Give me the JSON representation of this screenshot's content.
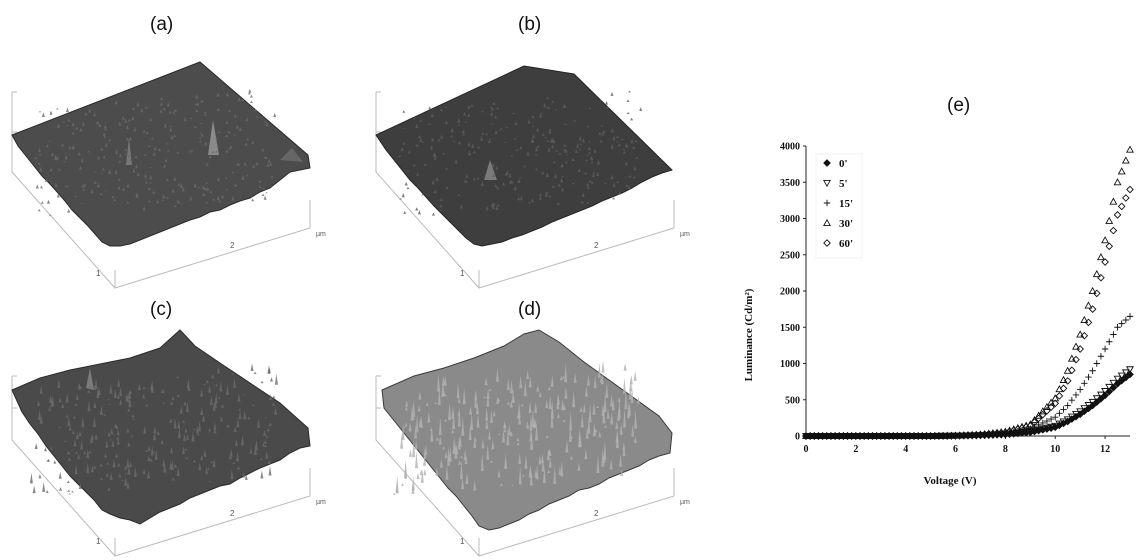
{
  "panels": {
    "a": {
      "label": "(a)",
      "axis_unit": "µm",
      "ticks": [
        "1",
        "2"
      ]
    },
    "b": {
      "label": "(b)",
      "axis_unit": "µm",
      "ticks": [
        "1",
        "2"
      ]
    },
    "c": {
      "label": "(c)",
      "axis_unit": "µm",
      "ticks": [
        "1",
        "2"
      ]
    },
    "d": {
      "label": "(d)",
      "axis_unit": "µm",
      "ticks": [
        "1",
        "2"
      ]
    },
    "e": {
      "label": "(e)"
    }
  },
  "chart_data": {
    "type": "scatter",
    "title": "",
    "xlabel": "Voltage (V)",
    "ylabel": "Luminance (Cd/m²)",
    "xlim": [
      0,
      13
    ],
    "ylim": [
      0,
      4000
    ],
    "xticks": [
      0,
      2,
      4,
      6,
      8,
      10,
      12
    ],
    "yticks": [
      0,
      500,
      1000,
      1500,
      2000,
      2500,
      3000,
      3500,
      4000
    ],
    "grid": false,
    "legend_position": "top-left",
    "series": [
      {
        "name": "0'",
        "marker": "filled-diamond",
        "x": [
          0,
          1,
          2,
          3,
          4,
          5,
          6,
          7,
          8,
          9,
          10,
          10.5,
          11,
          11.5,
          12,
          12.5,
          13
        ],
        "y": [
          0,
          0,
          0,
          0,
          0,
          0,
          2,
          8,
          20,
          50,
          120,
          200,
          300,
          420,
          560,
          720,
          850
        ]
      },
      {
        "name": "5'",
        "marker": "triangle-down",
        "x": [
          0,
          1,
          2,
          3,
          4,
          5,
          6,
          7,
          8,
          9,
          10,
          10.5,
          11,
          11.5,
          12,
          12.5,
          13
        ],
        "y": [
          0,
          0,
          0,
          0,
          0,
          0,
          3,
          10,
          25,
          60,
          140,
          230,
          340,
          470,
          620,
          790,
          920
        ]
      },
      {
        "name": "15'",
        "marker": "plus",
        "x": [
          0,
          1,
          2,
          3,
          4,
          5,
          6,
          7,
          8,
          9,
          10,
          10.5,
          11,
          11.5,
          12,
          12.5,
          13
        ],
        "y": [
          0,
          0,
          0,
          0,
          0,
          0,
          5,
          15,
          40,
          100,
          260,
          420,
          640,
          900,
          1200,
          1500,
          1650
        ]
      },
      {
        "name": "30'",
        "marker": "triangle-up",
        "x": [
          0,
          1,
          2,
          3,
          4,
          5,
          6,
          7,
          8,
          9,
          10,
          10.5,
          11,
          11.5,
          12,
          12.5,
          13
        ],
        "y": [
          0,
          0,
          0,
          0,
          0,
          0,
          5,
          20,
          60,
          160,
          520,
          900,
          1400,
          2000,
          2700,
          3500,
          3950
        ]
      },
      {
        "name": "60'",
        "marker": "diamond",
        "x": [
          0,
          1,
          2,
          3,
          4,
          5,
          6,
          7,
          8,
          9,
          10,
          10.5,
          11,
          11.5,
          12,
          12.5,
          13
        ],
        "y": [
          0,
          0,
          0,
          0,
          0,
          0,
          5,
          18,
          50,
          140,
          450,
          760,
          1200,
          1750,
          2400,
          3050,
          3400
        ]
      }
    ]
  }
}
